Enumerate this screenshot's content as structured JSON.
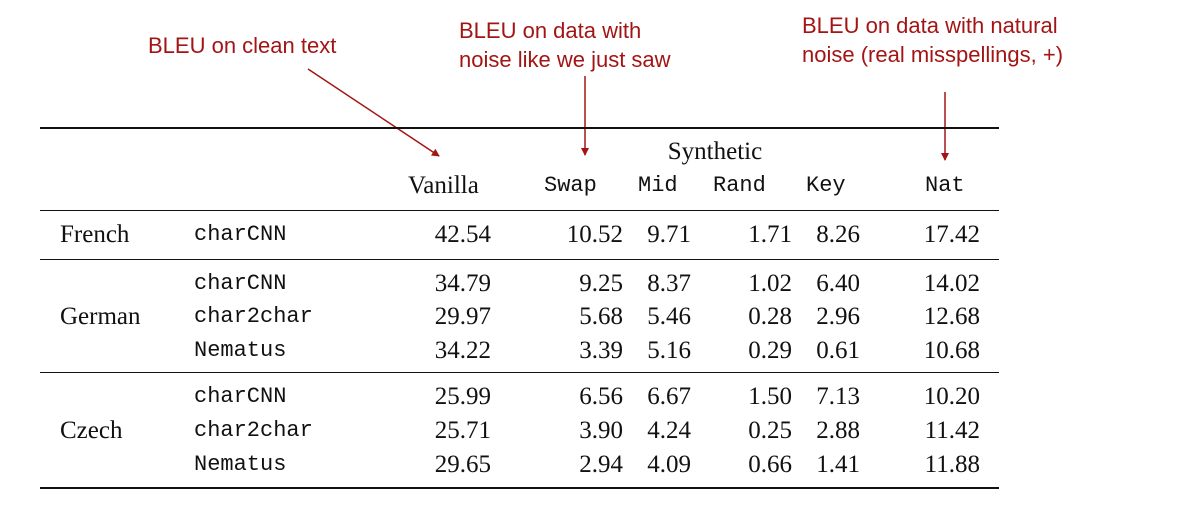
{
  "annotations": {
    "clean": "BLEU on clean text",
    "synthetic": [
      "BLEU on data with",
      "noise like we just saw"
    ],
    "natural": [
      "BLEU on data with natural",
      "noise (real misspellings, +)"
    ]
  },
  "accent_color": "#a31515",
  "table": {
    "group_header": "Synthetic",
    "columns": [
      "Vanilla",
      "Swap",
      "Mid",
      "Rand",
      "Key",
      "Nat"
    ],
    "languages": [
      "French",
      "German",
      "Czech"
    ],
    "rows": [
      {
        "model": "charCNN",
        "values": [
          "42.54",
          "10.52",
          "9.71",
          "1.71",
          "8.26",
          "17.42"
        ]
      },
      {
        "model": "charCNN",
        "values": [
          "34.79",
          "9.25",
          "8.37",
          "1.02",
          "6.40",
          "14.02"
        ]
      },
      {
        "model": "char2char",
        "values": [
          "29.97",
          "5.68",
          "5.46",
          "0.28",
          "2.96",
          "12.68"
        ]
      },
      {
        "model": "Nematus",
        "values": [
          "34.22",
          "3.39",
          "5.16",
          "0.29",
          "0.61",
          "10.68"
        ]
      },
      {
        "model": "charCNN",
        "values": [
          "25.99",
          "6.56",
          "6.67",
          "1.50",
          "7.13",
          "10.20"
        ]
      },
      {
        "model": "char2char",
        "values": [
          "25.71",
          "3.90",
          "4.24",
          "0.25",
          "2.88",
          "11.42"
        ]
      },
      {
        "model": "Nematus",
        "values": [
          "29.65",
          "2.94",
          "4.09",
          "0.66",
          "1.41",
          "11.88"
        ]
      }
    ]
  }
}
